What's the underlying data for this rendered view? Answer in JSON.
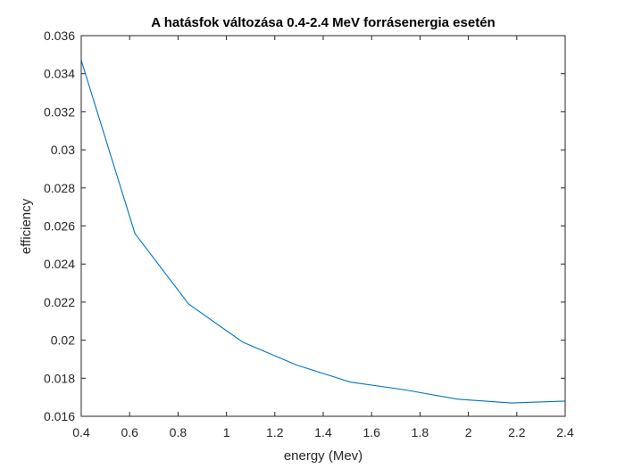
{
  "chart_data": {
    "type": "line",
    "title": "A hatásfok változása 0.4-2.4 MeV forrásenergia esetén",
    "xlabel": "energy (Mev)",
    "ylabel": "efficiency",
    "xlim": [
      0.4,
      2.4
    ],
    "ylim": [
      0.016,
      0.036
    ],
    "xticks": [
      0.4,
      0.6,
      0.8,
      1.0,
      1.2,
      1.4,
      1.6,
      1.8,
      2.0,
      2.2,
      2.4
    ],
    "xtick_labels": [
      "0.4",
      "0.6",
      "0.8",
      "1",
      "1.2",
      "1.4",
      "1.6",
      "1.8",
      "2",
      "2.2",
      "2.4"
    ],
    "yticks": [
      0.016,
      0.018,
      0.02,
      0.022,
      0.024,
      0.026,
      0.028,
      0.03,
      0.032,
      0.034,
      0.036
    ],
    "ytick_labels": [
      "0.016",
      "0.018",
      "0.02",
      "0.022",
      "0.024",
      "0.026",
      "0.028",
      "0.03",
      "0.032",
      "0.034",
      "0.036"
    ],
    "grid": false,
    "series": [
      {
        "color": "#0072BD",
        "x": [
          0.4,
          0.622,
          0.844,
          1.067,
          1.289,
          1.511,
          1.733,
          1.956,
          2.178,
          2.4
        ],
        "y": [
          0.0347,
          0.0256,
          0.0219,
          0.0199,
          0.0187,
          0.0178,
          0.0174,
          0.0169,
          0.0167,
          0.0168
        ]
      }
    ]
  }
}
